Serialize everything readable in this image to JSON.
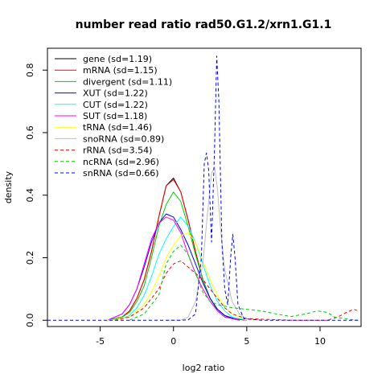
{
  "chart_data": {
    "type": "line",
    "title": "number read ratio rad50.G1.2/xrn1.G1.1",
    "xlabel": "log2 ratio",
    "ylabel": "density",
    "xlim": [
      -8.6,
      12.8
    ],
    "ylim": [
      -0.02,
      0.87
    ],
    "xticks": [
      -5,
      0,
      5,
      10
    ],
    "yticks": [
      0.0,
      0.2,
      0.4,
      0.6,
      0.8
    ],
    "xtick_labels": [
      "-5",
      "0",
      "5",
      "10"
    ],
    "ytick_labels": [
      "0.0",
      "0.2",
      "0.4",
      "0.6",
      "0.8"
    ],
    "grid": false,
    "legend_position": "top-left",
    "series": [
      {
        "name": "gene (sd=1.19)",
        "color": "#000000",
        "dash": false,
        "points": [
          [
            -4.5,
            0
          ],
          [
            -3.5,
            0.01
          ],
          [
            -3,
            0.03
          ],
          [
            -2.5,
            0.07
          ],
          [
            -2,
            0.13
          ],
          [
            -1.5,
            0.22
          ],
          [
            -1,
            0.33
          ],
          [
            -0.5,
            0.43
          ],
          [
            0,
            0.455
          ],
          [
            0.5,
            0.41
          ],
          [
            1,
            0.32
          ],
          [
            1.5,
            0.22
          ],
          [
            2,
            0.13
          ],
          [
            2.5,
            0.07
          ],
          [
            3,
            0.035
          ],
          [
            3.5,
            0.015
          ],
          [
            4,
            0.005
          ],
          [
            5,
            0
          ]
        ]
      },
      {
        "name": "mRNA (sd=1.15)",
        "color": "#ff0000",
        "dash": false,
        "points": [
          [
            -4.5,
            0
          ],
          [
            -3.5,
            0.01
          ],
          [
            -3,
            0.03
          ],
          [
            -2.5,
            0.07
          ],
          [
            -2,
            0.13
          ],
          [
            -1.5,
            0.22
          ],
          [
            -1,
            0.33
          ],
          [
            -0.5,
            0.43
          ],
          [
            0,
            0.45
          ],
          [
            0.5,
            0.41
          ],
          [
            1,
            0.32
          ],
          [
            1.5,
            0.22
          ],
          [
            2,
            0.13
          ],
          [
            2.5,
            0.07
          ],
          [
            3,
            0.035
          ],
          [
            3.5,
            0.015
          ],
          [
            4,
            0.005
          ],
          [
            5,
            0
          ]
        ]
      },
      {
        "name": "divergent (sd=1.11)",
        "color": "#00cd00",
        "dash": false,
        "points": [
          [
            -4.5,
            0
          ],
          [
            -3.5,
            0.01
          ],
          [
            -3,
            0.025
          ],
          [
            -2.5,
            0.06
          ],
          [
            -2,
            0.11
          ],
          [
            -1.5,
            0.2
          ],
          [
            -1,
            0.3
          ],
          [
            -0.5,
            0.37
          ],
          [
            0,
            0.41
          ],
          [
            0.5,
            0.38
          ],
          [
            1,
            0.3
          ],
          [
            1.5,
            0.21
          ],
          [
            2,
            0.13
          ],
          [
            2.5,
            0.07
          ],
          [
            3,
            0.03
          ],
          [
            3.5,
            0.01
          ],
          [
            4.5,
            0
          ]
        ]
      },
      {
        "name": "XUT (sd=1.22)",
        "color": "#0000ff",
        "dash": false,
        "points": [
          [
            -4.5,
            0
          ],
          [
            -3.5,
            0.02
          ],
          [
            -3,
            0.05
          ],
          [
            -2.5,
            0.1
          ],
          [
            -2,
            0.17
          ],
          [
            -1.5,
            0.25
          ],
          [
            -1,
            0.31
          ],
          [
            -0.5,
            0.34
          ],
          [
            0,
            0.33
          ],
          [
            0.5,
            0.29
          ],
          [
            1,
            0.24
          ],
          [
            1.5,
            0.18
          ],
          [
            2,
            0.12
          ],
          [
            2.5,
            0.07
          ],
          [
            3,
            0.035
          ],
          [
            3.5,
            0.015
          ],
          [
            4.5,
            0
          ]
        ]
      },
      {
        "name": "CUT (sd=1.22)",
        "color": "#00ffff",
        "dash": false,
        "points": [
          [
            -4.5,
            0
          ],
          [
            -3.5,
            0.005
          ],
          [
            -3,
            0.015
          ],
          [
            -2.5,
            0.04
          ],
          [
            -2,
            0.08
          ],
          [
            -1.5,
            0.14
          ],
          [
            -1,
            0.21
          ],
          [
            -0.5,
            0.26
          ],
          [
            0,
            0.3
          ],
          [
            0.5,
            0.33
          ],
          [
            1,
            0.3
          ],
          [
            1.5,
            0.25
          ],
          [
            2,
            0.18
          ],
          [
            2.5,
            0.11
          ],
          [
            3,
            0.06
          ],
          [
            3.5,
            0.03
          ],
          [
            4,
            0.01
          ],
          [
            5,
            0
          ]
        ]
      },
      {
        "name": "SUT (sd=1.18)",
        "color": "#ff00ff",
        "dash": false,
        "points": [
          [
            -4.5,
            0
          ],
          [
            -3.5,
            0.02
          ],
          [
            -3,
            0.05
          ],
          [
            -2.5,
            0.1
          ],
          [
            -2,
            0.18
          ],
          [
            -1.5,
            0.26
          ],
          [
            -1,
            0.31
          ],
          [
            -0.5,
            0.33
          ],
          [
            0,
            0.32
          ],
          [
            0.5,
            0.28
          ],
          [
            1,
            0.21
          ],
          [
            1.5,
            0.15
          ],
          [
            2,
            0.1
          ],
          [
            2.5,
            0.06
          ],
          [
            3,
            0.03
          ],
          [
            3.5,
            0.01
          ],
          [
            4.5,
            0
          ]
        ]
      },
      {
        "name": "tRNA (sd=1.46)",
        "color": "#ffff00",
        "dash": false,
        "points": [
          [
            -4.5,
            0
          ],
          [
            -3.5,
            0.005
          ],
          [
            -3,
            0.01
          ],
          [
            -2.5,
            0.03
          ],
          [
            -2,
            0.05
          ],
          [
            -1.5,
            0.09
          ],
          [
            -1,
            0.14
          ],
          [
            -0.5,
            0.2
          ],
          [
            0,
            0.24
          ],
          [
            0.5,
            0.27
          ],
          [
            1,
            0.28
          ],
          [
            1.5,
            0.25
          ],
          [
            2,
            0.19
          ],
          [
            2.5,
            0.13
          ],
          [
            3,
            0.08
          ],
          [
            3.5,
            0.04
          ],
          [
            4,
            0.02
          ],
          [
            5,
            0
          ]
        ]
      },
      {
        "name": "snoRNA (sd=0.89)",
        "color": "#bebebe",
        "dash": false,
        "points": [
          [
            -0.5,
            0
          ],
          [
            0.5,
            0
          ],
          [
            1,
            0.01
          ],
          [
            1.5,
            0.06
          ],
          [
            2,
            0.18
          ],
          [
            2.3,
            0.33
          ],
          [
            2.6,
            0.47
          ],
          [
            2.8,
            0.49
          ],
          [
            3,
            0.42
          ],
          [
            3.2,
            0.3
          ],
          [
            3.5,
            0.16
          ],
          [
            4,
            0.06
          ],
          [
            4.5,
            0.02
          ],
          [
            5,
            0.005
          ],
          [
            6,
            0
          ]
        ]
      },
      {
        "name": "rRNA (sd=3.54)",
        "color": "#ff0000",
        "dash": true,
        "points": [
          [
            -4,
            0
          ],
          [
            -3,
            0.01
          ],
          [
            -2,
            0.04
          ],
          [
            -1,
            0.1
          ],
          [
            -0.5,
            0.15
          ],
          [
            0,
            0.18
          ],
          [
            0.5,
            0.19
          ],
          [
            1,
            0.17
          ],
          [
            1.5,
            0.15
          ],
          [
            2,
            0.13
          ],
          [
            2.5,
            0.1
          ],
          [
            3,
            0.07
          ],
          [
            3.5,
            0.04
          ],
          [
            4,
            0.02
          ],
          [
            5,
            0.005
          ],
          [
            8,
            0
          ],
          [
            10.5,
            0
          ],
          [
            11.2,
            0.01
          ],
          [
            11.8,
            0.025
          ],
          [
            12.3,
            0.035
          ],
          [
            12.6,
            0.03
          ]
        ]
      },
      {
        "name": "ncRNA (sd=2.96)",
        "color": "#00cd00",
        "dash": true,
        "points": [
          [
            -3,
            0
          ],
          [
            -2,
            0.02
          ],
          [
            -1,
            0.08
          ],
          [
            -0.5,
            0.18
          ],
          [
            0,
            0.22
          ],
          [
            0.5,
            0.24
          ],
          [
            1,
            0.21
          ],
          [
            1.5,
            0.15
          ],
          [
            2,
            0.09
          ],
          [
            2.5,
            0.06
          ],
          [
            3,
            0.05
          ],
          [
            4,
            0.04
          ],
          [
            5,
            0.035
          ],
          [
            6,
            0.03
          ],
          [
            7,
            0.02
          ],
          [
            8,
            0.012
          ],
          [
            9,
            0.02
          ],
          [
            9.8,
            0.03
          ],
          [
            10.5,
            0.025
          ],
          [
            11,
            0.01
          ],
          [
            12,
            0.003
          ],
          [
            12.6,
            0
          ]
        ]
      },
      {
        "name": "snRNA (sd=0.66)",
        "color": "#0000ff",
        "dash": true,
        "points": [
          [
            -8.6,
            0
          ],
          [
            0.5,
            0
          ],
          [
            1,
            0.001
          ],
          [
            1.5,
            0.02
          ],
          [
            1.9,
            0.2
          ],
          [
            2.1,
            0.5
          ],
          [
            2.25,
            0.535
          ],
          [
            2.4,
            0.48
          ],
          [
            2.6,
            0.25
          ],
          [
            2.8,
            0.55
          ],
          [
            2.95,
            0.845
          ],
          [
            3.1,
            0.7
          ],
          [
            3.3,
            0.25
          ],
          [
            3.5,
            0.1
          ],
          [
            3.7,
            0.05
          ],
          [
            3.9,
            0.2
          ],
          [
            4.05,
            0.275
          ],
          [
            4.2,
            0.2
          ],
          [
            4.4,
            0.05
          ],
          [
            4.8,
            0.005
          ],
          [
            6,
            0
          ],
          [
            12.6,
            0
          ]
        ]
      }
    ]
  }
}
